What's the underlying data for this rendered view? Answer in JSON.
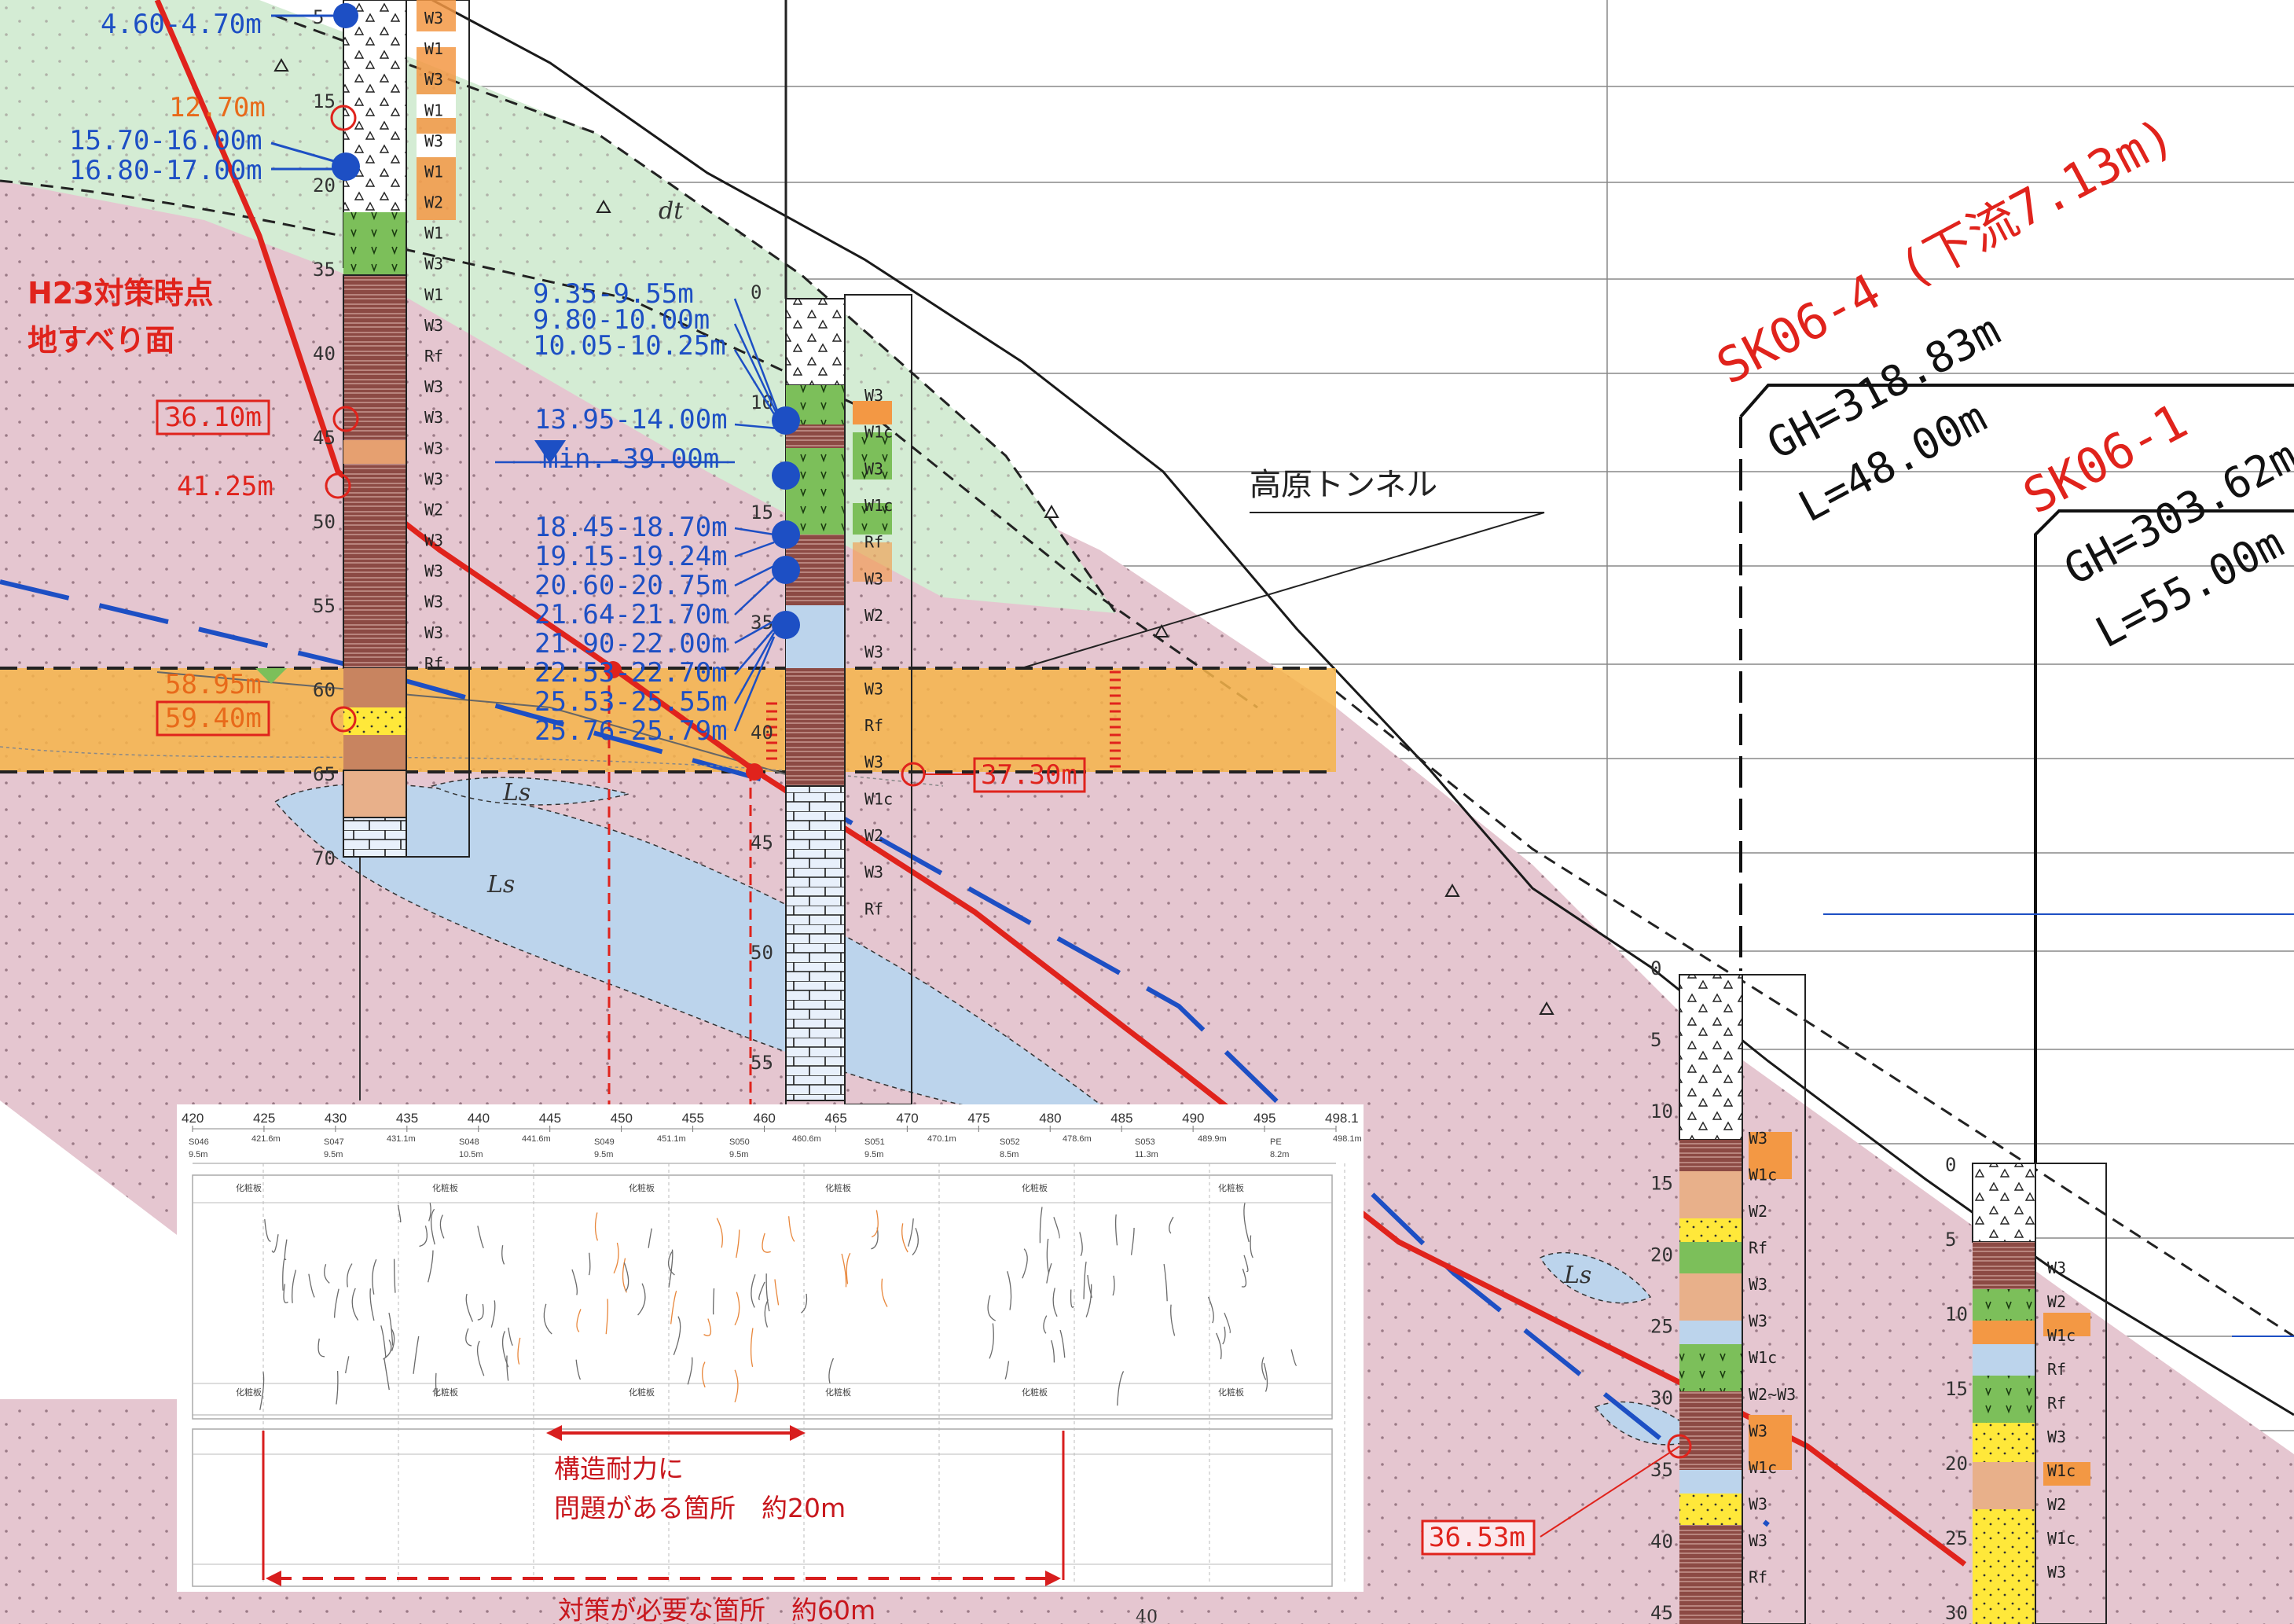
{
  "geology": {
    "zone_label_dt": "dt",
    "zone_label_ls": "Ls",
    "tunnel_label": "高原トンネル",
    "slip_surface_label_line1": "H23対策時点",
    "slip_surface_label_line2": "地すべり面"
  },
  "left_boring": {
    "labels_blue": [
      "4.60-4.70m",
      "15.70-16.00m",
      "16.80-17.00m"
    ],
    "label_orange_top": "12.70m",
    "label_red_1": "36.10m",
    "label_red_2": "41.25m",
    "label_orange_1": "58.95m",
    "label_orange_2": "59.40m",
    "depth_ticks": [
      "5",
      "15",
      "20",
      "35",
      "40",
      "45",
      "50",
      "55",
      "60",
      "65",
      "70"
    ],
    "layers": [
      "W3",
      "W1",
      "W3",
      "W1",
      "W3",
      "W1",
      "W2",
      "W1",
      "W3",
      "W1",
      "W3",
      "Rf",
      "W3",
      "W3",
      "W3",
      "W3",
      "W2",
      "W3",
      "W3",
      "W3",
      "W3",
      "Rf"
    ]
  },
  "center_boring": {
    "labels_blue": [
      "9.35-9.55m",
      "9.80-10.00m",
      "10.05-10.25m",
      "13.95-14.00m",
      "18.45-18.70m",
      "19.15-19.24m",
      "20.60-20.75m",
      "21.64-21.70m",
      "21.90-22.00m",
      "22.53-22.70m",
      "25.53-25.55m",
      "25.76-25.79m"
    ],
    "water_level": "min.-39.00m",
    "label_red": "37.30m",
    "depth_ticks": [
      "0",
      "10",
      "15",
      "35",
      "40",
      "45",
      "50",
      "55"
    ],
    "layers": [
      "W3",
      "W1c",
      "W3",
      "W1c",
      "Rf",
      "W3",
      "W2",
      "W3",
      "W3",
      "Rf",
      "W3",
      "W1c",
      "W2",
      "W3",
      "Rf"
    ]
  },
  "hole_sk064": {
    "title": "SK06-4 (下流7.13m)",
    "gh": "GH=318.83m",
    "length": "L=48.00m",
    "label_red": "36.53m",
    "depth_ticks": [
      "0",
      "5",
      "10",
      "15",
      "20",
      "25",
      "30",
      "35",
      "40",
      "45"
    ],
    "layers": [
      "W3",
      "W1c",
      "W2",
      "Rf",
      "W3",
      "W3",
      "W1c",
      "W2~W3",
      "W3",
      "W1c",
      "W3",
      "W3",
      "Rf"
    ]
  },
  "hole_sk061": {
    "title": "SK06-1",
    "gh": "GH=303.62m",
    "length": "L=55.00m",
    "depth_ticks": [
      "0",
      "5",
      "10",
      "15",
      "20",
      "25",
      "30"
    ],
    "layers": [
      "W3",
      "W2",
      "W1c",
      "Rf",
      "Rf",
      "W3",
      "W1c",
      "W2",
      "W1c",
      "W3"
    ]
  },
  "inset": {
    "axis": [
      "420",
      "425",
      "430",
      "435",
      "440",
      "445",
      "450",
      "455",
      "460",
      "465",
      "470",
      "475",
      "480",
      "485",
      "490",
      "495",
      "498.1"
    ],
    "stations": [
      "S046",
      "S047",
      "S048",
      "S049",
      "S050",
      "S051",
      "S052",
      "S053",
      "PE"
    ],
    "chainages": [
      "421.6m",
      "431.1m",
      "441.6m",
      "451.1m",
      "460.6m",
      "470.1m",
      "478.6m",
      "489.9m",
      "498.1m"
    ],
    "spans": [
      "9.5m",
      "9.5m",
      "10.5m",
      "9.5m",
      "9.5m",
      "9.5m",
      "8.5m",
      "11.3m",
      "8.2m"
    ],
    "lining_labels": [
      "化粧板",
      "化粧板",
      "化粧板",
      "化粧板",
      "化粧板",
      "化粧板"
    ],
    "problem_label_line1": "構造耐力に",
    "problem_label_line2": "問題がある箇所　約20m",
    "measure_label": "対策が必要な箇所　約60m"
  },
  "page_number": "40",
  "colors": {
    "pink_zone": "#e5c6d0",
    "green_zone": "#d4ecd4",
    "blue_zone": "#bcd4ec",
    "orange_band": "#f6b44a",
    "slip_red": "#e0231c",
    "label_blue": "#1d4fc4"
  }
}
